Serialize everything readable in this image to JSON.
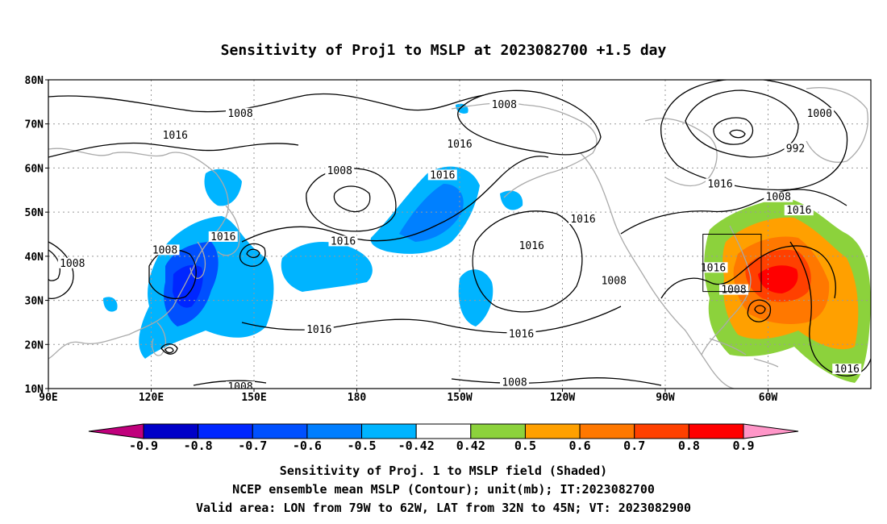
{
  "map": {
    "title": "Sensitivity of Proj1 to MSLP at 2023082700 +1.5 day",
    "lat_labels": [
      "10N",
      "20N",
      "30N",
      "40N",
      "50N",
      "60N",
      "70N",
      "80N"
    ],
    "lat_values": [
      10,
      20,
      30,
      40,
      50,
      60,
      70,
      80
    ],
    "lon_labels": [
      "90E",
      "120E",
      "150E",
      "180",
      "150W",
      "120W",
      "90W",
      "60W"
    ],
    "lon_values": [
      90,
      120,
      150,
      180,
      210,
      240,
      270,
      300
    ],
    "lon_range": [
      90,
      330
    ],
    "lat_range": [
      10,
      80
    ],
    "grid": "dotted",
    "colors": {
      "land_outline": "#aaaaaa",
      "contour": "#000000"
    },
    "contour_labels": [
      {
        "text": "1008",
        "lon": 146,
        "lat": 72
      },
      {
        "text": "1016",
        "lon": 127,
        "lat": 67
      },
      {
        "text": "1008",
        "lon": 223,
        "lat": 74
      },
      {
        "text": "1000",
        "lon": 315,
        "lat": 72
      },
      {
        "text": "992",
        "lon": 308,
        "lat": 64
      },
      {
        "text": "1016",
        "lon": 210,
        "lat": 65
      },
      {
        "text": "1008",
        "lon": 175,
        "lat": 59
      },
      {
        "text": "1016",
        "lon": 205,
        "lat": 58
      },
      {
        "text": "1016",
        "lon": 286,
        "lat": 56
      },
      {
        "text": "1008",
        "lon": 303,
        "lat": 53
      },
      {
        "text": "1016",
        "lon": 309,
        "lat": 50
      },
      {
        "text": "1016",
        "lon": 246,
        "lat": 48
      },
      {
        "text": "1016",
        "lon": 231,
        "lat": 42
      },
      {
        "text": "1016",
        "lon": 141,
        "lat": 44
      },
      {
        "text": "1016",
        "lon": 176,
        "lat": 43
      },
      {
        "text": "1008",
        "lon": 124,
        "lat": 41
      },
      {
        "text": "1008",
        "lon": 97,
        "lat": 38
      },
      {
        "text": "1016",
        "lon": 284,
        "lat": 37
      },
      {
        "text": "1008",
        "lon": 255,
        "lat": 34
      },
      {
        "text": "1008",
        "lon": 290,
        "lat": 32
      },
      {
        "text": "1016",
        "lon": 169,
        "lat": 23
      },
      {
        "text": "1016",
        "lon": 228,
        "lat": 22
      },
      {
        "text": "1008",
        "lon": 146,
        "lat": 10
      },
      {
        "text": "1008",
        "lon": 226,
        "lat": 11
      },
      {
        "text": "1016",
        "lon": 323,
        "lat": 14
      }
    ],
    "valid_box": {
      "lon_min": 281,
      "lon_max": 298,
      "lat_min": 32,
      "lat_max": 45
    }
  },
  "colorbar": {
    "labels": [
      "-0.9",
      "-0.8",
      "-0.7",
      "-0.6",
      "-0.5",
      "-0.42",
      "0.42",
      "0.5",
      "0.6",
      "0.7",
      "0.8",
      "0.9"
    ],
    "colors": [
      "#c0007c",
      "#0000c8",
      "#0026ff",
      "#0050ff",
      "#007eff",
      "#00b4ff",
      "#ffffff",
      "#8cd23c",
      "#ffa000",
      "#ff7800",
      "#ff4000",
      "#ff0000",
      "#ff96c8"
    ]
  },
  "footer": {
    "line1": "Sensitivity of Proj. 1 to MSLP field (Shaded)",
    "line2": "NCEP ensemble mean MSLP (Contour); unit(mb); IT:2023082700",
    "line3": "Valid area: LON from 79W to 62W, LAT from 32N to 45N; VT: 2023082900"
  }
}
